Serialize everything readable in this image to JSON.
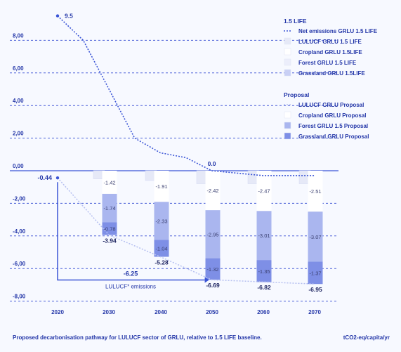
{
  "colors": {
    "accent": "#3b55d6",
    "accent_dark": "#2336a8",
    "lulucf_1p5": "#e6e9f7",
    "cropland_1p5": "#ffffff",
    "forest_1p5": "#eceefb",
    "grassland_1p5": "#c9d0f5",
    "lulucf_prop": "#eef0fb",
    "cropland_prop": "#ffffff",
    "forest_prop": "#aab6ef",
    "grassland_prop": "#7e8fe6",
    "background": "#f7f9ff"
  },
  "footer": {
    "caption": "Proposed decarbonisation pathway for LULUCF sector of GRLU, relative to 1.5 LIFE baseline.",
    "units": "tCO2-eq/capita/yr"
  },
  "chart_data": {
    "type": "bar",
    "title": "",
    "xlabel": "",
    "ylabel": "",
    "x": [
      "2020",
      "2030",
      "2040",
      "2050",
      "2060",
      "2070"
    ],
    "ylim": [
      -8,
      10
    ],
    "y_ticks": [
      "8,00",
      "6,00",
      "4,00",
      "2,00",
      "0,00",
      "-2,00",
      "-4,00",
      "-6,00",
      "-8,00"
    ],
    "y_tick_values": [
      8,
      6,
      4,
      2,
      0,
      -2,
      -4,
      -6,
      -8
    ],
    "line_net_1p5": {
      "name": "Net emissions GRLU  1.5 LIFE",
      "x": [
        2020,
        2025,
        2030,
        2035,
        2040,
        2045,
        2050,
        2060,
        2070
      ],
      "y": [
        9.5,
        8.0,
        5.0,
        2.0,
        1.1,
        0.8,
        0.0,
        -0.3,
        -0.3
      ]
    },
    "line_net_proposal": {
      "name": "LULUCF GRLU Proposal",
      "x": [
        2020,
        2030,
        2040,
        2050,
        2060,
        2070
      ],
      "y": [
        -0.44,
        -3.94,
        -5.28,
        -6.69,
        -6.82,
        -6.95
      ]
    },
    "bars_1p5": {
      "lulucf": [
        0,
        -0.5,
        -0.6,
        -0.8,
        -0.8,
        -0.8
      ]
    },
    "bars_proposal": {
      "cropland": [
        0,
        -1.42,
        -1.91,
        -2.42,
        -2.47,
        -2.51
      ],
      "forest": [
        0,
        -1.74,
        -2.33,
        -2.95,
        -3.01,
        -3.07
      ],
      "grassland": [
        0,
        -0.78,
        -1.04,
        -1.32,
        -1.35,
        -1.37
      ]
    },
    "point_labels": {
      "start_1p5": "9.5",
      "zero_2050": "0.0",
      "start_prop": "-0.44",
      "totals": [
        "-3.94",
        "-5.28",
        "-6.69",
        "-6.82",
        "-6.95"
      ]
    },
    "segment_labels": {
      "cropland": [
        "-1.42",
        "-1.91",
        "-2.42",
        "-2.47",
        "-2.51"
      ],
      "forest": [
        "-1.74",
        "-2.33",
        "-2.95",
        "-3.01",
        "-3.07"
      ],
      "grassland": [
        "-0.78",
        "-1.04",
        "-1.32",
        "-1.35",
        "-1.37"
      ]
    },
    "annotation": {
      "value": "-6.25",
      "label": "LULUCF* emissions"
    },
    "legend": {
      "group1_title": "1.5 LIFE",
      "group1": [
        "Net emissions GRLU  1.5 LIFE",
        "LULUCF GRLU 1.5 LIFE",
        "Cropland GRLU 1.5LIFE",
        "Forest GRLU 1.5 LIFE",
        "Grassland GRLU 1.5LIFE"
      ],
      "group2_title": "Proposal",
      "group2": [
        "LULUCF GRLU Proposal",
        "Cropland GRLU Proposal",
        "Forest GRLU 1.5 Proposal",
        "Grassland GRLU Proposal"
      ],
      "placement": "top-right"
    },
    "grid": true
  }
}
